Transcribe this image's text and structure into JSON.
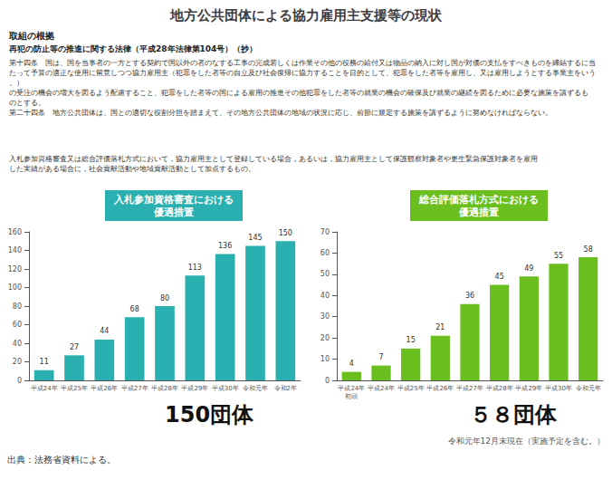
{
  "title": "地方公共団体による協力雇用主支援等の現状",
  "annotations": [
    "取組の根拠",
    "再犯の防止等の推進に関する法律（平成28年法律第104号）（抄）",
    "第十四条　国は、国を当事者の一方とする契約で国以外の者のなする工事の完成若しくは作業その他の役務の給付又は物品の納入に対し国が対価の支払をすべきものを締結するに当",
    "たって予算の適正な使用に留意しつつ協力雇用主（犯罪をした者等の自立及び社会復帰に協力することを目的として、犯罪をした者等を雇用し、又は雇用しようとする事業主をいう。）",
    "の受注の機会の増大を図るよう配慮すること、犯罪をした者等の国による雇用の推進その他犯罪をした者等の就業の機会の確保及び就業の継続を図るために必要な施策を講ずるも",
    "のとする。",
    "第二十四条　地方公共団体は、国との適切な役割分担を踏まえて、その地方公共団体の地域の状況に応じ、前節に規定する施策を講ずるように努めなければならない。",
    "入札参加資格審査又は総合評価落札方式において，協力雇用主として登録している場合，あるいは，協力雇用主として保護観察対象者や更生緊急保護対象者を雇用",
    "した実績がある場合に，社会貢献活動や地域貢献活動として加点するもの。",
    "令和元年12月末現在（実施予定を含む。）",
    "出典：法務省資料による。"
  ],
  "chart_data": [
    {
      "type": "bar",
      "title": "入札参加資格審査における\n優遇措置",
      "categories": [
        "平成24年",
        "平成25年",
        "平成26年",
        "平成27年",
        "平成28年",
        "平成29年",
        "平成30年",
        "令和元年",
        "令和2年"
      ],
      "values": [
        11,
        27,
        44,
        68,
        80,
        113,
        136,
        145,
        150
      ],
      "color": "#2ab0b0",
      "ylim": [
        0,
        160
      ],
      "yticks": [
        0,
        20,
        40,
        60,
        80,
        100,
        120,
        140,
        160
      ],
      "grid": false,
      "data_labels": true,
      "annotations": [
        "150団体"
      ]
    },
    {
      "type": "bar",
      "title": "総合評価落札方式における\n優遇措置",
      "categories": [
        "平成24年\n初頭",
        "平成24年",
        "平成25年",
        "平成26年",
        "平成27年",
        "平成28年",
        "平成29年",
        "平成30年",
        "令和元年"
      ],
      "values": [
        4,
        7,
        15,
        21,
        36,
        45,
        49,
        55,
        58
      ],
      "color": "#6abf1e",
      "ylim": [
        0,
        70
      ],
      "yticks": [
        0,
        10,
        20,
        30,
        40,
        50,
        60,
        70
      ],
      "grid": false,
      "data_labels": true,
      "annotations": [
        "５８団体"
      ]
    }
  ]
}
